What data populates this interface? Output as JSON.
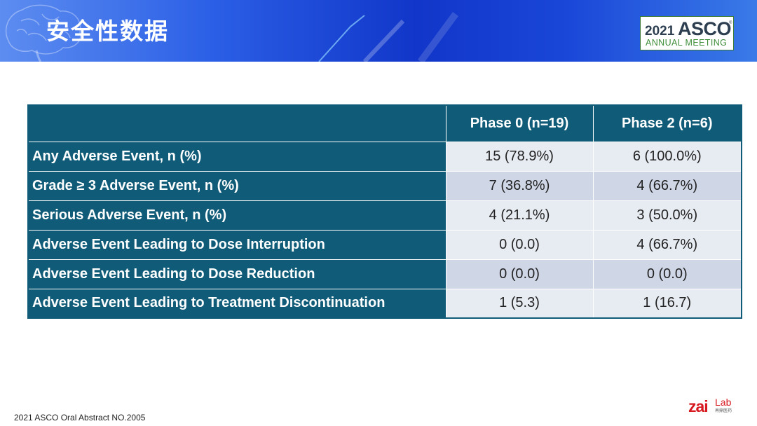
{
  "header": {
    "title": "安全性数据",
    "logo": {
      "year": "2021",
      "name": "ASCO",
      "reg": "®",
      "subtitle": "ANNUAL MEETING"
    }
  },
  "table": {
    "columns": [
      "",
      "Phase 0 (n=19)",
      "Phase 2 (n=6)"
    ],
    "rows": [
      {
        "label": "Any Adverse Event, n (%)",
        "phase0": "15 (78.9%)",
        "phase2": "6 (100.0%)"
      },
      {
        "label": "Grade ≥ 3 Adverse Event, n (%)",
        "phase0": "7 (36.8%)",
        "phase2": "4 (66.7%)"
      },
      {
        "label": "Serious Adverse Event, n (%)",
        "phase0": "4 (21.1%)",
        "phase2": "3 (50.0%)"
      },
      {
        "label": "Adverse Event Leading to Dose Interruption",
        "phase0": "0 (0.0)",
        "phase2": "4 (66.7%)"
      },
      {
        "label": "Adverse Event Leading to Dose Reduction",
        "phase0": "0 (0.0)",
        "phase2": "0 (0.0)"
      },
      {
        "label": "Adverse Event Leading to Treatment Discontinuation",
        "phase0": "1 (5.3)",
        "phase2": "1 (16.7)"
      }
    ]
  },
  "footer": {
    "source": "2021 ASCO Oral Abstract NO.2005",
    "brand_logo": {
      "main": "zai",
      "small": "Lab",
      "sub": "再鼎医药"
    }
  },
  "colors": {
    "header_blue": "#1136c9",
    "table_teal": "#0f5b78",
    "row_light": "#e7ebf2",
    "row_dark": "#cfd6e6",
    "brand_red": "#d71920",
    "asco_green": "#3e8e3a"
  }
}
